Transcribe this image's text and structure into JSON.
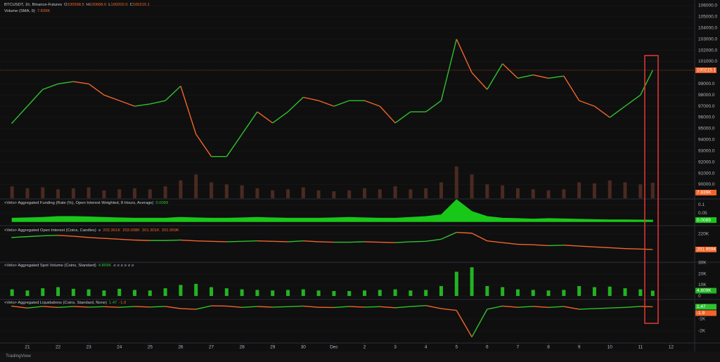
{
  "chart_data": [
    {
      "type": "line",
      "title": "BTCUSDT, 1h, Binance-Futures",
      "ohlc": [
        [
          "O",
          "100568.5"
        ],
        [
          "H",
          "100668.0"
        ],
        [
          "L",
          "100202.0"
        ],
        [
          "C",
          "100215.1"
        ]
      ],
      "x": [
        -0.5,
        0,
        0.5,
        1,
        1.5,
        2,
        2.5,
        3,
        3.5,
        4,
        4.5,
        5,
        5.5,
        6,
        6.5,
        7,
        7.5,
        8,
        8.5,
        9,
        9.5,
        10,
        10.5,
        11,
        11.5,
        12,
        12.5,
        13,
        13.5,
        14,
        14.5,
        15,
        15.5,
        16,
        16.5,
        17,
        17.5,
        18,
        18.5,
        19,
        19.5,
        20,
        20.4
      ],
      "values": [
        95500,
        97000,
        98500,
        99000,
        99200,
        99000,
        98000,
        97500,
        97000,
        97200,
        97500,
        98800,
        94500,
        92500,
        92500,
        94500,
        96500,
        95500,
        96500,
        97800,
        97500,
        97000,
        97500,
        97500,
        97000,
        95500,
        96500,
        96500,
        97500,
        103000,
        100000,
        98500,
        100800,
        99500,
        99800,
        99500,
        99700,
        97500,
        97000,
        96000,
        97000,
        98000,
        100215.1
      ],
      "up_color": "#2fc22f",
      "down_color": "#f2652a",
      "badge_color": "#f2652a",
      "last_label": "100215.1",
      "xlim": [
        -0.894,
        21.77
      ],
      "ylim": [
        88770,
        106500
      ],
      "yticks": [
        {
          "value": 106000,
          "label": "106000.0"
        },
        {
          "value": 105000,
          "label": "105000.0"
        },
        {
          "value": 104000,
          "label": "104000.0"
        },
        {
          "value": 103000,
          "label": "103000.0"
        },
        {
          "value": 102000,
          "label": "102000.0"
        },
        {
          "value": 101000,
          "label": "101000.0"
        },
        {
          "value": 99000,
          "label": "99000.0"
        },
        {
          "value": 98000,
          "label": "98000.0"
        },
        {
          "value": 97000,
          "label": "97000.0"
        },
        {
          "value": 96000,
          "label": "96000.0"
        },
        {
          "value": 95000,
          "label": "95000.0"
        },
        {
          "value": 94000,
          "label": "94000.0"
        },
        {
          "value": 93000,
          "label": "93000.0"
        },
        {
          "value": 92000,
          "label": "92000.0"
        },
        {
          "value": 91000,
          "label": "91000.0"
        },
        {
          "value": 90000,
          "label": "90000.0"
        }
      ],
      "xticks": [
        {
          "value": 0,
          "label": "21"
        },
        {
          "value": 1,
          "label": "22"
        },
        {
          "value": 2,
          "label": "23"
        },
        {
          "value": 3,
          "label": "24"
        },
        {
          "value": 4,
          "label": "25"
        },
        {
          "value": 5,
          "label": "26"
        },
        {
          "value": 6,
          "label": "27"
        },
        {
          "value": 7,
          "label": "28"
        },
        {
          "value": 8,
          "label": "29"
        },
        {
          "value": 9,
          "label": "30"
        },
        {
          "value": 10,
          "label": "Dec"
        },
        {
          "value": 11,
          "label": "2"
        },
        {
          "value": 12,
          "label": "3"
        },
        {
          "value": 13,
          "label": "4"
        },
        {
          "value": 14,
          "label": "5"
        },
        {
          "value": 15,
          "label": "6"
        },
        {
          "value": 16,
          "label": "7"
        },
        {
          "value": 17,
          "label": "8"
        },
        {
          "value": 18,
          "label": "9"
        },
        {
          "value": 19,
          "label": "10"
        },
        {
          "value": 20,
          "label": "11"
        },
        {
          "value": 21,
          "label": "12"
        }
      ]
    },
    {
      "type": "bar",
      "title": "Volume (SMA, 9)",
      "legend_values": [
        "7.839K"
      ],
      "legend_color": "#f2652a",
      "x": [
        -0.5,
        0,
        0.5,
        1,
        1.5,
        2,
        2.5,
        3,
        3.5,
        4,
        4.5,
        5,
        5.5,
        6,
        6.5,
        7,
        7.5,
        8,
        8.5,
        9,
        9.5,
        10,
        10.5,
        11,
        11.5,
        12,
        12.5,
        13,
        13.5,
        14,
        14.5,
        15,
        15.5,
        16,
        16.5,
        17,
        17.5,
        18,
        18.5,
        19,
        19.5,
        20,
        20.4
      ],
      "values": [
        6000,
        5000,
        5500,
        4500,
        5000,
        5500,
        4000,
        4500,
        5000,
        4500,
        6000,
        9000,
        12000,
        8000,
        7000,
        6500,
        5000,
        4000,
        4500,
        5500,
        4000,
        3500,
        4000,
        5000,
        4500,
        6000,
        4500,
        5000,
        8000,
        16000,
        12000,
        7000,
        6500,
        5000,
        4500,
        4000,
        4500,
        8000,
        7500,
        9000,
        8000,
        7000,
        7839
      ],
      "color": "#4a2a20",
      "badge_color": "#f2652a",
      "last_label": "7.839K",
      "ylim": [
        0,
        100000
      ],
      "yticks": []
    },
    {
      "type": "area",
      "title": "<Velo> Aggregated Funding (Rate (%), Open Interest Weighted, 8 Hours, Average)",
      "legend_values": [
        "0.0089"
      ],
      "legend_color": "#2fc22f",
      "x": [
        -0.5,
        0,
        0.5,
        1,
        1.5,
        2,
        2.5,
        3,
        3.5,
        4,
        4.5,
        5,
        5.5,
        6,
        6.5,
        7,
        7.5,
        8,
        8.5,
        9,
        9.5,
        10,
        10.5,
        11,
        11.5,
        12,
        12.5,
        13,
        13.5,
        14,
        14.5,
        15,
        15.5,
        16,
        16.5,
        17,
        17.5,
        18,
        18.5,
        19,
        19.5,
        20,
        20.4
      ],
      "values": [
        0.02,
        0.022,
        0.025,
        0.03,
        0.03,
        0.028,
        0.025,
        0.022,
        0.02,
        0.02,
        0.02,
        0.025,
        0.022,
        0.02,
        0.02,
        0.022,
        0.025,
        0.022,
        0.02,
        0.02,
        0.02,
        0.022,
        0.025,
        0.022,
        0.02,
        0.02,
        0.025,
        0.03,
        0.04,
        0.13,
        0.06,
        0.03,
        0.02,
        0.018,
        0.015,
        0.018,
        0.016,
        0.014,
        0.012,
        0.01,
        0.01,
        0.009,
        0.0089
      ],
      "color": "#19c719",
      "badge_color": "#19c719",
      "last_label": "0.0089",
      "ylim": [
        -0.02,
        0.13
      ],
      "yticks": [
        0.05,
        0.1
      ]
    },
    {
      "type": "line",
      "title": "<Velo> Aggregated Open Interest (Coins, Candles)",
      "legend_extra": [
        "ø"
      ],
      "legend_values": [
        "202.361K",
        "203.008K",
        "201.301K",
        "201.959K"
      ],
      "legend_color": "#f2652a",
      "x": [
        -0.5,
        0,
        0.5,
        1,
        1.5,
        2,
        2.5,
        3,
        3.5,
        4,
        4.5,
        5,
        5.5,
        6,
        6.5,
        7,
        7.5,
        8,
        8.5,
        9,
        9.5,
        10,
        10.5,
        11,
        11.5,
        12,
        12.5,
        13,
        13.5,
        14,
        14.5,
        15,
        15.5,
        16,
        16.5,
        17,
        17.5,
        18,
        18.5,
        19,
        19.5,
        20,
        20.4
      ],
      "values": [
        216000,
        217000,
        218000,
        218500,
        217500,
        216000,
        215000,
        214000,
        213000,
        212500,
        212500,
        213000,
        212000,
        211500,
        211000,
        211500,
        212000,
        211500,
        211000,
        212000,
        211000,
        210500,
        210500,
        211000,
        210500,
        210000,
        211000,
        211500,
        214000,
        222000,
        221000,
        212000,
        210000,
        208000,
        207500,
        206500,
        207000,
        206000,
        205000,
        204000,
        203000,
        202500,
        201959
      ],
      "up_color": "#2fc22f",
      "down_color": "#f2652a",
      "badge_color": "#f2652a",
      "last_label": "201.959K",
      "ylim": [
        188000,
        229000
      ],
      "yticks": [
        {
          "value": 220000,
          "label": "220K"
        }
      ]
    },
    {
      "type": "bar",
      "title": "<Velo> Aggregated Spot Volume (Coins, Standard)",
      "legend_values": [
        "4.809K"
      ],
      "legend_color": "#2fc22f",
      "legend_extra": [
        "ø ø ø ø ø ø"
      ],
      "x": [
        -0.5,
        0,
        0.5,
        1,
        1.5,
        2,
        2.5,
        3,
        3.5,
        4,
        4.5,
        5,
        5.5,
        6,
        6.5,
        7,
        7.5,
        8,
        8.5,
        9,
        9.5,
        10,
        10.5,
        11,
        11.5,
        12,
        12.5,
        13,
        13.5,
        14,
        14.5,
        15,
        15.5,
        16,
        16.5,
        17,
        17.5,
        18,
        18.5,
        19,
        19.5,
        20,
        20.4
      ],
      "values": [
        6000,
        5000,
        7000,
        8000,
        6500,
        6000,
        5000,
        6500,
        5500,
        5000,
        7000,
        10000,
        11000,
        8000,
        7000,
        6000,
        5500,
        5000,
        5500,
        6000,
        5000,
        4500,
        4500,
        5000,
        5500,
        6000,
        5000,
        5500,
        9000,
        22000,
        26000,
        9000,
        8000,
        6000,
        5500,
        5000,
        5500,
        9000,
        8000,
        8500,
        7000,
        6000,
        4809
      ],
      "color": "#22b422",
      "badge_color": "#22b422",
      "last_label": "4.809K",
      "ylim": [
        -2500,
        30000
      ],
      "yticks": [
        0,
        {
          "value": 10000,
          "label": "10K"
        },
        {
          "value": 20000,
          "label": "20K"
        },
        {
          "value": 30000,
          "label": "30K"
        }
      ]
    },
    {
      "type": "line",
      "title": "<Velo> Aggregated Liquidations (Coins, Standard, None)",
      "legend_values": [
        "1.47",
        "-1.9"
      ],
      "legend_color": "#2fc22f",
      "x": [
        -0.5,
        0,
        0.5,
        1,
        1.5,
        2,
        2.5,
        3,
        3.5,
        4,
        4.5,
        5,
        5.5,
        6,
        6.5,
        7,
        7.5,
        8,
        8.5,
        9,
        9.5,
        10,
        10.5,
        11,
        11.5,
        12,
        12.5,
        13,
        13.5,
        14,
        14.5,
        15,
        15.5,
        16,
        16.5,
        17,
        17.5,
        18,
        18.5,
        19,
        19.5,
        20,
        20.4
      ],
      "values": [
        50,
        -100,
        30,
        -50,
        20,
        -30,
        10,
        -40,
        20,
        -20,
        30,
        -150,
        -200,
        80,
        60,
        -50,
        20,
        -30,
        10,
        60,
        -40,
        -60,
        20,
        -30,
        10,
        -80,
        20,
        100,
        -150,
        -300,
        -2500,
        -200,
        60,
        -40,
        30,
        -50,
        20,
        -200,
        -150,
        -100,
        -50,
        30,
        1.47
      ],
      "up_color": "#2fc22f",
      "down_color": "#f2652a",
      "badge_color": "#2fc22f",
      "last_label": "1.47",
      "ylim": [
        -3000,
        550
      ],
      "yticks": [
        {
          "value": -1000,
          "label": "-1K"
        },
        {
          "value": -2000,
          "label": "-2K"
        }
      ]
    }
  ],
  "footer": "TradingView"
}
